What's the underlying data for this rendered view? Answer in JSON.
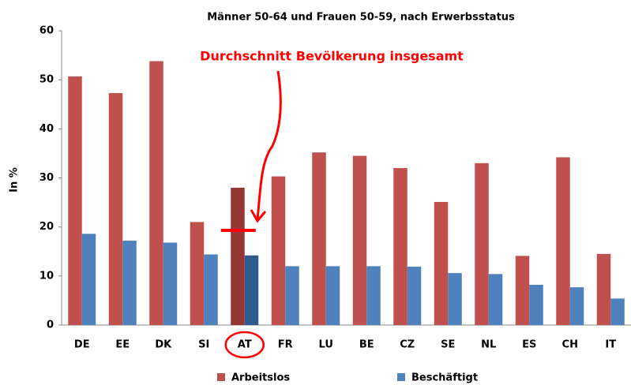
{
  "chart_data": {
    "type": "bar",
    "title": "Männer 50-64 und Frauen 50-59, nach Erwerbsstatus",
    "y_label": "In %",
    "categories": [
      "DE",
      "EE",
      "DK",
      "SI",
      "AT",
      "FR",
      "LU",
      "BE",
      "CZ",
      "SE",
      "NL",
      "ES",
      "CH",
      "IT"
    ],
    "series": [
      {
        "name": "Arbeitslos",
        "color": "#c0504d",
        "highlight_color": "#953735",
        "values": [
          50.7,
          47.3,
          53.8,
          21,
          28,
          30.3,
          35.2,
          34.5,
          32,
          25.1,
          33,
          14.1,
          34.2,
          14.5
        ]
      },
      {
        "name": "Beschäftigt",
        "color": "#4f81bd",
        "highlight_color": "#2f5b8f",
        "values": [
          18.6,
          17.2,
          16.8,
          14.4,
          14.2,
          12,
          12,
          12,
          11.9,
          10.6,
          10.4,
          8.2,
          7.7,
          5.4
        ]
      }
    ],
    "highlight_index": 4,
    "annotation": {
      "text": "Durchschnitt Bevölkerung insgesamt",
      "value": 19.3,
      "color": "#ff0000"
    },
    "ylim": [
      0,
      60
    ],
    "yticks": [
      0,
      10,
      20,
      30,
      40,
      50,
      60
    ],
    "grid": false,
    "legend": "bottom"
  }
}
